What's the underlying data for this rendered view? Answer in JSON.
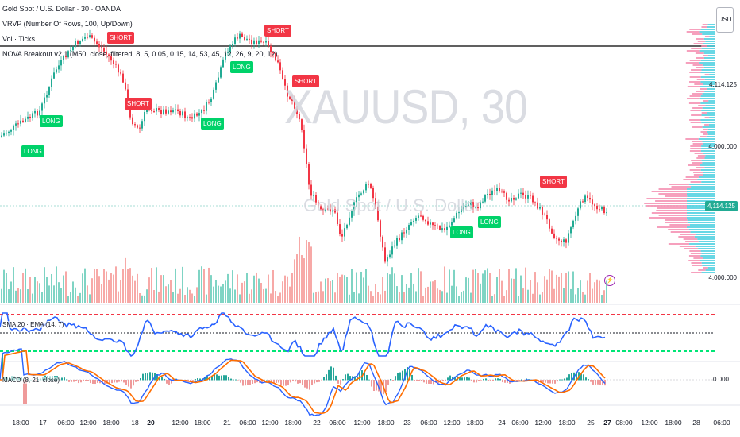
{
  "colors": {
    "up": "#22ab94",
    "down": "#f23645",
    "vol_up": "#7fd4c4",
    "vol_down": "#f7a9a7",
    "rsi_line": "#2962ff",
    "macd_line": "#2962ff",
    "signal_line": "#ff6d00",
    "long": "#00d26a",
    "short": "#f23645",
    "hist_up": "#26a69a",
    "hist_down": "#ef9a9a"
  },
  "legend": {
    "symbol_line": "Gold Spot / U.S. Dollar · 30 · OANDA",
    "vrvp_line": "VRVP (Number Of Rows, 100, Up/Down)",
    "vol_line": "Vol · Ticks",
    "nova_line": "NOVA Breakout v2.1 (M50, close, filtered, 8, 5, 0.05, 0.15, 14, 53, 45, 12, 26, 9, 20, 12)"
  },
  "watermark": {
    "symbol": "XAUUSD, 30",
    "description": "Gold Spot / U.S. Dollar"
  },
  "axis": {
    "currency": "USD",
    "price_labels": [
      "4,114.125",
      "4,000.000"
    ],
    "current_price": "4,114.125",
    "volume_labels": [
      "4,000,000",
      "4,000,000",
      "4,000,000"
    ],
    "macd_zero": "0.000"
  },
  "panes": {
    "rsi_label": "SMA 20 · EMA (14, 7)",
    "macd_label": "MACD (8, 21, close)"
  },
  "signals": [
    {
      "type": "long",
      "text": "LONG"
    },
    {
      "type": "long",
      "text": "LONG"
    },
    {
      "type": "short",
      "text": "SHORT"
    },
    {
      "type": "long",
      "text": "LONG"
    },
    {
      "type": "short",
      "text": "SHORT"
    },
    {
      "type": "long",
      "text": "LONG"
    },
    {
      "type": "short",
      "text": "SHORT"
    },
    {
      "type": "short",
      "text": "SHORT"
    },
    {
      "type": "long",
      "text": "LONG"
    },
    {
      "type": "long",
      "text": "LONG"
    },
    {
      "type": "short",
      "text": "SHORT"
    }
  ],
  "time_axis": [
    {
      "text": "18:00",
      "bold": false
    },
    {
      "text": "17",
      "bold": false
    },
    {
      "text": "06:00",
      "bold": false
    },
    {
      "text": "12:00",
      "bold": false
    },
    {
      "text": "18:00",
      "bold": false
    },
    {
      "text": "18",
      "bold": false
    },
    {
      "text": "20",
      "bold": true
    },
    {
      "text": "12:00",
      "bold": false
    },
    {
      "text": "18:00",
      "bold": false
    },
    {
      "text": "21",
      "bold": false
    },
    {
      "text": "06:00",
      "bold": false
    },
    {
      "text": "12:00",
      "bold": false
    },
    {
      "text": "18:00",
      "bold": false
    },
    {
      "text": "22",
      "bold": false
    },
    {
      "text": "06:00",
      "bold": false
    },
    {
      "text": "12:00",
      "bold": false
    },
    {
      "text": "18:00",
      "bold": false
    },
    {
      "text": "23",
      "bold": false
    },
    {
      "text": "06:00",
      "bold": false
    },
    {
      "text": "12:00",
      "bold": false
    },
    {
      "text": "18:00",
      "bold": false
    },
    {
      "text": "24",
      "bold": false
    },
    {
      "text": "06:00",
      "bold": false
    },
    {
      "text": "12:00",
      "bold": false
    },
    {
      "text": "18:00",
      "bold": false
    },
    {
      "text": "25",
      "bold": false
    },
    {
      "text": "27",
      "bold": true
    },
    {
      "text": "08:00",
      "bold": false
    },
    {
      "text": "12:00",
      "bold": false
    },
    {
      "text": "18:00",
      "bold": false
    },
    {
      "text": "28",
      "bold": false
    },
    {
      "text": "06:00",
      "bold": false
    }
  ]
}
